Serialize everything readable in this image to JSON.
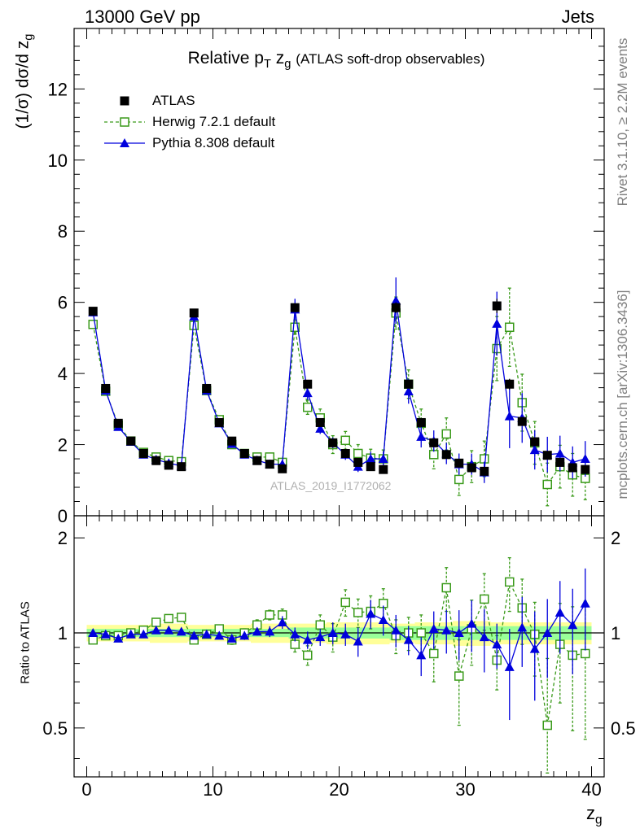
{
  "header": {
    "left": "13000 GeV pp",
    "right": "Jets"
  },
  "side_labels": {
    "rivet": "Rivet 3.1.10, ≥ 2.2M events",
    "mcplots": "mcplots.cern.ch [arXiv:1306.3436]"
  },
  "watermark": "ATLAS_2019_I1772062",
  "colors": {
    "atlas": "#000000",
    "herwig": "#3a9a1a",
    "pythia": "#0000dd",
    "band_inner": "#99ff99",
    "band_outer": "#ffff99"
  },
  "chart_data": {
    "type": "scatter",
    "title": "Relative p_T z_g (ATLAS soft-drop observables)",
    "xlabel": "z_g",
    "ylabel": "(1/σ) dσ/d z_g",
    "ratio_ylabel": "Ratio to ATLAS",
    "xlim": [
      -1,
      41
    ],
    "ylim": [
      0,
      13.7
    ],
    "ratio_ylim": [
      0.35,
      2.35
    ],
    "x_ticks": [
      0,
      10,
      20,
      30,
      40
    ],
    "y_ticks": [
      0,
      2,
      4,
      6,
      8,
      10,
      12
    ],
    "ratio_ticks": [
      0.5,
      1,
      2
    ],
    "x": [
      0.5,
      1.5,
      2.5,
      3.5,
      4.5,
      5.5,
      6.5,
      7.5,
      8.5,
      9.5,
      10.5,
      11.5,
      12.5,
      13.5,
      14.5,
      15.5,
      16.5,
      17.5,
      18.5,
      19.5,
      20.5,
      21.5,
      22.5,
      23.5,
      24.5,
      25.5,
      26.5,
      27.5,
      28.5,
      29.5,
      30.5,
      31.5,
      32.5,
      33.5,
      34.5,
      35.5,
      36.5,
      37.5,
      38.5,
      39.5
    ],
    "series": [
      {
        "name": "ATLAS",
        "values": [
          5.75,
          3.58,
          2.6,
          2.1,
          1.75,
          1.55,
          1.42,
          1.38,
          5.7,
          3.58,
          2.62,
          2.1,
          1.75,
          1.55,
          1.45,
          1.32,
          5.85,
          3.7,
          2.62,
          2.05,
          1.75,
          1.5,
          1.38,
          1.3,
          5.85,
          3.7,
          2.62,
          2.05,
          1.72,
          1.48,
          1.35,
          1.25,
          5.9,
          3.7,
          2.65,
          2.08,
          1.7,
          1.5,
          1.35,
          1.3
        ],
        "errors": [
          0.1,
          0.08,
          0.06,
          0.05,
          0.04,
          0.04,
          0.04,
          0.04,
          0.1,
          0.08,
          0.06,
          0.05,
          0.05,
          0.05,
          0.05,
          0.05,
          0.12,
          0.1,
          0.08,
          0.07,
          0.06,
          0.06,
          0.06,
          0.06,
          0.15,
          0.12,
          0.1,
          0.1,
          0.1,
          0.1,
          0.1,
          0.1,
          0.2,
          0.15,
          0.12,
          0.12,
          0.12,
          0.12,
          0.12,
          0.12
        ],
        "ratio": [
          1,
          1,
          1,
          1,
          1,
          1,
          1,
          1,
          1,
          1,
          1,
          1,
          1,
          1,
          1,
          1,
          1,
          1,
          1,
          1,
          1,
          1,
          1,
          1,
          1,
          1,
          1,
          1,
          1,
          1,
          1,
          1,
          1,
          1,
          1,
          1,
          1,
          1,
          1,
          1
        ]
      },
      {
        "name": "Herwig 7.2.1 default",
        "values": [
          5.38,
          3.5,
          2.55,
          2.1,
          1.78,
          1.65,
          1.55,
          1.52,
          5.35,
          3.52,
          2.7,
          2.0,
          1.75,
          1.65,
          1.65,
          1.5,
          5.3,
          3.05,
          2.75,
          2.0,
          2.12,
          1.75,
          1.62,
          1.6,
          5.7,
          3.7,
          2.6,
          1.72,
          2.3,
          1.02,
          1.38,
          1.6,
          4.7,
          5.3,
          3.18,
          2.05,
          0.88,
          1.38,
          1.15,
          1.05
        ],
        "errors": [
          0.08,
          0.06,
          0.05,
          0.05,
          0.05,
          0.05,
          0.05,
          0.05,
          0.1,
          0.08,
          0.08,
          0.06,
          0.06,
          0.06,
          0.06,
          0.06,
          0.2,
          0.2,
          0.25,
          0.25,
          0.25,
          0.25,
          0.25,
          0.25,
          0.45,
          0.4,
          0.4,
          0.4,
          0.45,
          0.45,
          0.45,
          0.5,
          0.9,
          1.1,
          0.8,
          0.6,
          0.6,
          0.6,
          0.6,
          0.6
        ],
        "ratio": [
          0.95,
          0.98,
          0.98,
          1.0,
          1.02,
          1.08,
          1.11,
          1.12,
          0.95,
          0.99,
          1.03,
          0.95,
          1.0,
          1.06,
          1.14,
          1.14,
          0.92,
          0.85,
          1.06,
          0.97,
          1.25,
          1.16,
          1.17,
          1.24,
          0.98,
          1.0,
          1.0,
          0.86,
          1.39,
          0.73,
          1.03,
          1.28,
          0.82,
          1.45,
          1.2,
          0.99,
          0.51,
          0.92,
          0.85,
          0.86
        ],
        "ratio_errors": [
          0.02,
          0.02,
          0.02,
          0.02,
          0.02,
          0.02,
          0.02,
          0.02,
          0.02,
          0.02,
          0.03,
          0.03,
          0.03,
          0.04,
          0.04,
          0.05,
          0.05,
          0.06,
          0.08,
          0.1,
          0.12,
          0.12,
          0.14,
          0.14,
          0.12,
          0.12,
          0.14,
          0.16,
          0.22,
          0.22,
          0.24,
          0.26,
          0.16,
          0.28,
          0.28,
          0.26,
          0.32,
          0.32,
          0.36,
          0.4
        ]
      },
      {
        "name": "Pythia 8.308 default",
        "values": [
          5.72,
          3.52,
          2.5,
          2.08,
          1.72,
          1.58,
          1.48,
          1.4,
          5.6,
          3.52,
          2.6,
          2.02,
          1.72,
          1.56,
          1.45,
          1.45,
          5.8,
          3.45,
          2.45,
          2.05,
          1.72,
          1.38,
          1.6,
          1.6,
          6.05,
          3.5,
          2.22,
          2.1,
          1.75,
          1.45,
          1.45,
          1.22,
          5.4,
          2.8,
          2.75,
          1.85,
          1.72,
          1.75,
          1.5,
          1.6
        ],
        "errors": [
          0.08,
          0.06,
          0.05,
          0.05,
          0.05,
          0.05,
          0.05,
          0.05,
          0.08,
          0.08,
          0.06,
          0.05,
          0.05,
          0.05,
          0.05,
          0.06,
          0.3,
          0.2,
          0.15,
          0.15,
          0.15,
          0.15,
          0.2,
          0.2,
          0.65,
          0.35,
          0.3,
          0.3,
          0.3,
          0.3,
          0.3,
          0.3,
          0.9,
          0.9,
          0.7,
          0.55,
          0.5,
          0.5,
          0.45,
          0.5
        ],
        "ratio": [
          1.0,
          0.99,
          0.96,
          0.99,
          0.99,
          1.02,
          1.02,
          1.01,
          0.98,
          0.99,
          0.98,
          0.96,
          0.98,
          1.01,
          1.01,
          1.08,
          0.99,
          0.95,
          0.97,
          1.0,
          0.99,
          0.94,
          1.15,
          1.1,
          1.02,
          0.95,
          0.85,
          1.03,
          1.02,
          1.0,
          1.07,
          0.97,
          0.92,
          0.78,
          1.04,
          0.89,
          1.0,
          1.16,
          1.06,
          1.24
        ],
        "ratio_errors": [
          0.02,
          0.02,
          0.02,
          0.02,
          0.02,
          0.02,
          0.02,
          0.02,
          0.02,
          0.02,
          0.02,
          0.02,
          0.03,
          0.03,
          0.04,
          0.05,
          0.05,
          0.06,
          0.06,
          0.08,
          0.08,
          0.1,
          0.12,
          0.12,
          0.12,
          0.1,
          0.12,
          0.14,
          0.16,
          0.18,
          0.2,
          0.22,
          0.15,
          0.25,
          0.26,
          0.28,
          0.28,
          0.3,
          0.32,
          0.36
        ]
      }
    ],
    "band_inner": [
      0.03,
      0.03,
      0.03,
      0.03,
      0.03,
      0.03,
      0.03,
      0.03,
      0.03,
      0.03,
      0.03,
      0.03,
      0.03,
      0.03,
      0.03,
      0.03,
      0.04,
      0.04,
      0.04,
      0.04,
      0.04,
      0.04,
      0.04,
      0.04,
      0.05,
      0.05,
      0.05,
      0.05,
      0.05,
      0.05,
      0.05,
      0.05,
      0.05,
      0.05,
      0.05,
      0.05,
      0.05,
      0.05,
      0.05,
      0.05
    ],
    "band_outer": [
      0.06,
      0.06,
      0.06,
      0.06,
      0.06,
      0.07,
      0.07,
      0.07,
      0.06,
      0.06,
      0.06,
      0.06,
      0.06,
      0.07,
      0.07,
      0.07,
      0.07,
      0.07,
      0.07,
      0.08,
      0.08,
      0.08,
      0.08,
      0.08,
      0.07,
      0.07,
      0.08,
      0.08,
      0.08,
      0.09,
      0.09,
      0.09,
      0.08,
      0.08,
      0.08,
      0.08,
      0.08,
      0.08,
      0.08,
      0.08
    ]
  }
}
